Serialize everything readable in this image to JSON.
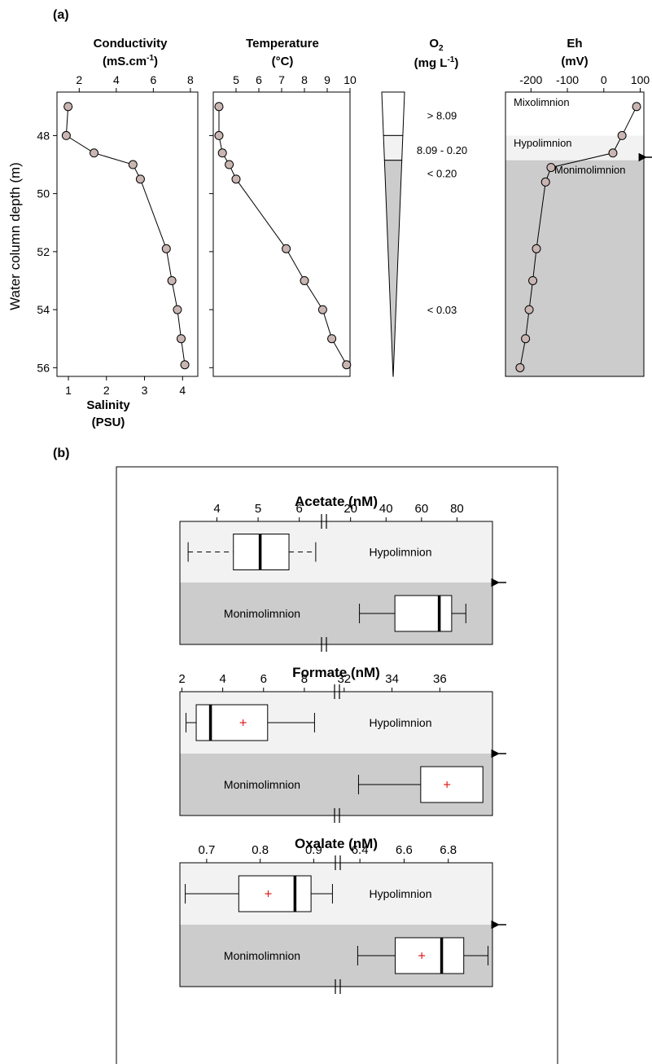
{
  "chart_data": [
    {
      "panel": "(a)",
      "type": "line",
      "title": "Conductivity",
      "unit": "(mS.cm-1)",
      "secondary_axis_title": "Salinity",
      "secondary_axis_unit": "(PSU)",
      "ylabel": "Water column depth (m)",
      "y_ticks": [
        "48",
        "50",
        "52",
        "54",
        "56"
      ],
      "x_ticks": [
        "2",
        "4",
        "6",
        "8"
      ],
      "x2_ticks": [
        "1",
        "2",
        "3",
        "4"
      ],
      "xlim": [
        0.8,
        8.4
      ],
      "ylim": [
        46.5,
        56.3
      ],
      "points": [
        {
          "x": 1.4,
          "y": 47.0
        },
        {
          "x": 1.3,
          "y": 48.0
        },
        {
          "x": 2.8,
          "y": 48.6
        },
        {
          "x": 4.9,
          "y": 49.0
        },
        {
          "x": 5.3,
          "y": 49.5
        },
        {
          "x": 6.7,
          "y": 51.9
        },
        {
          "x": 7.0,
          "y": 53.0
        },
        {
          "x": 7.3,
          "y": 54.0
        },
        {
          "x": 7.5,
          "y": 55.0
        },
        {
          "x": 7.7,
          "y": 55.9
        }
      ]
    },
    {
      "panel": "(a)",
      "type": "line",
      "title": "Temperature",
      "unit": "(°C)",
      "x_ticks": [
        "5",
        "6",
        "7",
        "8",
        "9",
        "10"
      ],
      "xlim": [
        4.0,
        10.0
      ],
      "ylim": [
        46.5,
        56.3
      ],
      "points": [
        {
          "x": 4.25,
          "y": 47.0
        },
        {
          "x": 4.25,
          "y": 48.0
        },
        {
          "x": 4.4,
          "y": 48.6
        },
        {
          "x": 4.7,
          "y": 49.0
        },
        {
          "x": 5.0,
          "y": 49.5
        },
        {
          "x": 7.2,
          "y": 51.9
        },
        {
          "x": 8.0,
          "y": 53.0
        },
        {
          "x": 8.8,
          "y": 54.0
        },
        {
          "x": 9.2,
          "y": 55.0
        },
        {
          "x": 9.85,
          "y": 55.9
        }
      ]
    },
    {
      "panel": "(a)",
      "type": "table",
      "title": "O2",
      "unit": "(mg L-1)",
      "ylim": [
        46.5,
        56.3
      ],
      "bands": [
        {
          "label": "> 8.09",
          "from": 46.5,
          "to": 48.0,
          "label_depth": 47.3,
          "color": "#ffffff"
        },
        {
          "label": "8.09 - 0.20",
          "from": 48.0,
          "to": 48.85,
          "label_depth": 48.5,
          "color": "#f2f2f2"
        },
        {
          "label": "< 0.20",
          "from": 48.85,
          "to": 56.3,
          "label_depth": 49.3,
          "color": "#cccccc"
        }
      ],
      "extra_labels": [
        {
          "label": "< 0.03",
          "depth": 54.0
        }
      ]
    },
    {
      "panel": "(a)",
      "type": "line",
      "title": "Eh",
      "unit": "(mV)",
      "x_ticks": [
        "-200",
        "-100",
        "0",
        "100"
      ],
      "x_tick_values": [
        -200,
        -100,
        0,
        100
      ],
      "xlim": [
        -270,
        110
      ],
      "ylim": [
        46.5,
        56.3
      ],
      "zones": [
        {
          "label": "Mixolimnion",
          "from": 46.5,
          "to": 48.0,
          "color": "#ffffff"
        },
        {
          "label": "Hypolimnion",
          "from": 48.0,
          "to": 48.85,
          "color": "#f2f2f2"
        },
        {
          "label": "Monimolimnion",
          "from": 48.85,
          "to": 56.3,
          "color": "#cccccc"
        }
      ],
      "points": [
        {
          "x": 90,
          "y": 47.0
        },
        {
          "x": 50,
          "y": 48.0
        },
        {
          "x": 25,
          "y": 48.6
        },
        {
          "x": -145,
          "y": 49.1
        },
        {
          "x": -160,
          "y": 49.6
        },
        {
          "x": -185,
          "y": 51.9
        },
        {
          "x": -195,
          "y": 53.0
        },
        {
          "x": -205,
          "y": 54.0
        },
        {
          "x": -215,
          "y": 55.0
        },
        {
          "x": -230,
          "y": 56.0
        }
      ]
    },
    {
      "panel": "(b)",
      "type": "box",
      "title": "Acetate (nM)",
      "left_ticks": [
        "4",
        "5",
        "6"
      ],
      "left_tick_values": [
        4,
        5,
        6
      ],
      "left_range": [
        3.1,
        6.6
      ],
      "right_ticks": [
        "20",
        "40",
        "60",
        "80"
      ],
      "right_tick_values": [
        20,
        40,
        60,
        80
      ],
      "right_range": [
        5,
        100
      ],
      "groups": [
        {
          "label": "Hypolimnion",
          "axis": "left",
          "whisker_style": "dashed",
          "min": 3.3,
          "q1": 4.4,
          "median": 5.05,
          "q3": 5.75,
          "max": 6.4
        },
        {
          "label": "Monimolimnion",
          "axis": "right",
          "whisker_style": "solid",
          "min": 25,
          "q1": 45,
          "median": 70,
          "q3": 77,
          "max": 85
        }
      ]
    },
    {
      "panel": "(b)",
      "type": "box",
      "title": "Formate (nM)",
      "left_ticks": [
        "2",
        "4",
        "6",
        "8"
      ],
      "left_tick_values": [
        2,
        4,
        6,
        8
      ],
      "left_range": [
        1.9,
        9.6
      ],
      "right_ticks": [
        "32",
        "34",
        "36"
      ],
      "right_tick_values": [
        32,
        34,
        36
      ],
      "right_range": [
        31.7,
        38.2
      ],
      "groups": [
        {
          "label": "Hypolimnion",
          "axis": "left",
          "whisker_style": "solid",
          "min": 2.2,
          "q1": 2.7,
          "median": 3.4,
          "q3": 6.2,
          "max": 8.5,
          "mean": 5.0
        },
        {
          "label": "Monimolimnion",
          "axis": "right",
          "whisker_style": "solid",
          "min": 32.6,
          "q1": 35.2,
          "median": null,
          "q3": 37.8,
          "max": null,
          "mean": 36.3
        }
      ]
    },
    {
      "panel": "(b)",
      "type": "box",
      "title": "Oxalate (nM)",
      "left_ticks": [
        "0.7",
        "0.8",
        "0.9"
      ],
      "left_tick_values": [
        0.7,
        0.8,
        0.9
      ],
      "left_range": [
        0.65,
        0.945
      ],
      "right_ticks": [
        "6.4",
        "6.6",
        "6.8"
      ],
      "right_tick_values": [
        6.4,
        6.6,
        6.8
      ],
      "right_range": [
        6.3,
        7.0
      ],
      "groups": [
        {
          "label": "Hypolimnion",
          "axis": "left",
          "whisker_style": "solid",
          "min": 0.66,
          "q1": 0.76,
          "median": 0.865,
          "q3": 0.895,
          "max": 0.935,
          "mean": 0.815
        },
        {
          "label": "Monimolimnion",
          "axis": "right",
          "whisker_style": "solid",
          "min": 6.39,
          "q1": 6.56,
          "median": 6.77,
          "q3": 6.87,
          "max": 6.98,
          "mean": 6.68
        }
      ]
    }
  ],
  "labels": {
    "panel_a": "(a)",
    "panel_b": "(b)",
    "conductivity_title": "Conductivity",
    "conductivity_unit": "(mS.cm",
    "conductivity_unit_sup": "-1",
    "conductivity_unit_close": ")",
    "salinity_title": "Salinity",
    "salinity_unit": "(PSU)",
    "temperature_title": "Temperature",
    "temperature_unit": "(°C)",
    "o2_title": "O",
    "o2_sub": "2",
    "o2_unit": "(mg L",
    "o2_unit_sup": "-1",
    "o2_unit_close": ")",
    "eh_title": "Eh",
    "eh_unit": "(mV)",
    "depth_label": "Water column depth (m)",
    "zone_mixolimnion": "Mixolimnion",
    "zone_hypolimnion": "Hypolimnion",
    "zone_monimolimnion": "Monimolimnion"
  }
}
